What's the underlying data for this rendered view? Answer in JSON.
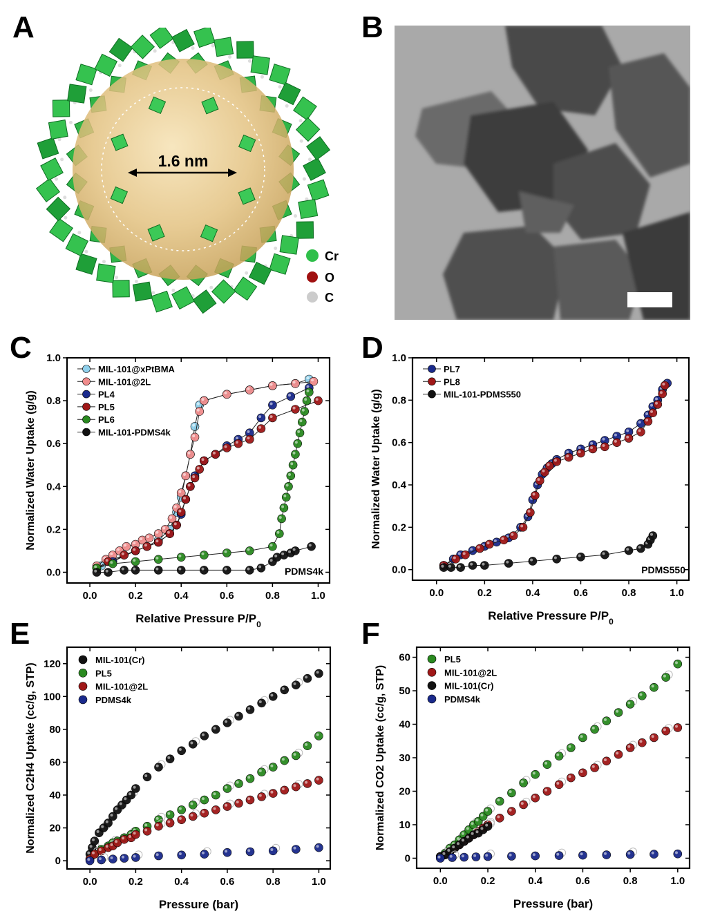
{
  "panels": {
    "A": "A",
    "B": "B",
    "C": "C",
    "D": "D",
    "E": "E",
    "F": "F"
  },
  "panelA": {
    "pore_label": "1.6 nm",
    "legend": [
      {
        "symbol": "Cr",
        "color": "#2fbf4a"
      },
      {
        "symbol": "O",
        "color": "#a01010"
      },
      {
        "symbol": "C",
        "color": "#cccccc"
      }
    ]
  },
  "panelB": {
    "description_free": true
  },
  "chart_data": [
    {
      "id": "C",
      "type": "scatter",
      "xlabel": "Relative Pressure P/P",
      "xlabel_sub": "0",
      "ylabel": "Normalized Water Uptake (g/g)",
      "annotation": "PDMS4k",
      "xlim": [
        -0.1,
        1.05
      ],
      "ylim": [
        -0.05,
        1.0
      ],
      "xticks": [
        "0.0",
        "0.2",
        "0.4",
        "0.6",
        "0.8",
        "1.0"
      ],
      "yticks": [
        "0.0",
        "0.2",
        "0.4",
        "0.6",
        "0.8",
        "1.0"
      ],
      "series": [
        {
          "name": "MIL-101@xPtBMA",
          "color": "#8fd0ec",
          "x": [
            0.05,
            0.1,
            0.15,
            0.2,
            0.25,
            0.3,
            0.35,
            0.38,
            0.4,
            0.42,
            0.44,
            0.46,
            0.48,
            0.5,
            0.6,
            0.7,
            0.8,
            0.9,
            0.96
          ],
          "y": [
            0.03,
            0.05,
            0.08,
            0.1,
            0.12,
            0.15,
            0.2,
            0.28,
            0.35,
            0.45,
            0.55,
            0.68,
            0.78,
            0.8,
            0.83,
            0.85,
            0.87,
            0.88,
            0.9
          ]
        },
        {
          "name": "MIL-101@2L",
          "color": "#f08c8c",
          "x": [
            0.03,
            0.07,
            0.1,
            0.13,
            0.16,
            0.2,
            0.23,
            0.26,
            0.3,
            0.33,
            0.36,
            0.38,
            0.4,
            0.42,
            0.44,
            0.46,
            0.48,
            0.5,
            0.6,
            0.7,
            0.8,
            0.9,
            0.98
          ],
          "y": [
            0.03,
            0.06,
            0.08,
            0.1,
            0.12,
            0.13,
            0.15,
            0.16,
            0.18,
            0.2,
            0.25,
            0.3,
            0.37,
            0.45,
            0.55,
            0.63,
            0.75,
            0.8,
            0.83,
            0.85,
            0.87,
            0.88,
            0.89
          ]
        },
        {
          "name": "PL4",
          "color": "#1a2a8c",
          "x": [
            0.03,
            0.1,
            0.2,
            0.3,
            0.35,
            0.38,
            0.4,
            0.42,
            0.44,
            0.46,
            0.5,
            0.55,
            0.6,
            0.65,
            0.7,
            0.75,
            0.8,
            0.88,
            0.96
          ],
          "y": [
            0.02,
            0.05,
            0.1,
            0.14,
            0.18,
            0.22,
            0.27,
            0.34,
            0.4,
            0.45,
            0.52,
            0.55,
            0.59,
            0.62,
            0.65,
            0.72,
            0.78,
            0.82,
            0.86
          ]
        },
        {
          "name": "PL5",
          "color": "#a01818",
          "x": [
            0.03,
            0.08,
            0.15,
            0.2,
            0.25,
            0.3,
            0.35,
            0.38,
            0.4,
            0.42,
            0.44,
            0.46,
            0.48,
            0.5,
            0.55,
            0.6,
            0.65,
            0.7,
            0.75,
            0.8,
            0.9,
            1.0
          ],
          "y": [
            0.02,
            0.05,
            0.08,
            0.1,
            0.12,
            0.14,
            0.18,
            0.22,
            0.28,
            0.34,
            0.4,
            0.44,
            0.48,
            0.52,
            0.55,
            0.58,
            0.6,
            0.62,
            0.67,
            0.72,
            0.76,
            0.8
          ]
        },
        {
          "name": "PL6",
          "color": "#2a8a20",
          "x": [
            0.03,
            0.1,
            0.2,
            0.3,
            0.4,
            0.5,
            0.6,
            0.7,
            0.8,
            0.83,
            0.84,
            0.85,
            0.86,
            0.87,
            0.88,
            0.89,
            0.9,
            0.91,
            0.92,
            0.93,
            0.94,
            0.95,
            0.96
          ],
          "y": [
            0.02,
            0.04,
            0.05,
            0.06,
            0.07,
            0.08,
            0.09,
            0.1,
            0.12,
            0.18,
            0.25,
            0.3,
            0.35,
            0.4,
            0.45,
            0.5,
            0.55,
            0.6,
            0.65,
            0.7,
            0.75,
            0.8,
            0.84
          ]
        },
        {
          "name": "MIL-101-PDMS4k",
          "color": "#111111",
          "x": [
            0.03,
            0.08,
            0.15,
            0.2,
            0.3,
            0.4,
            0.5,
            0.6,
            0.7,
            0.75,
            0.8,
            0.82,
            0.85,
            0.88,
            0.9,
            0.97
          ],
          "y": [
            0.0,
            0.0,
            0.01,
            0.01,
            0.01,
            0.01,
            0.01,
            0.01,
            0.01,
            0.02,
            0.05,
            0.07,
            0.08,
            0.09,
            0.1,
            0.12
          ]
        }
      ]
    },
    {
      "id": "D",
      "type": "scatter",
      "xlabel": "Relative Pressure P/P",
      "xlabel_sub": "0",
      "ylabel": "Normalized Water Uptake (g/g)",
      "annotation": "PDMS550",
      "xlim": [
        -0.1,
        1.05
      ],
      "ylim": [
        -0.05,
        1.0
      ],
      "xticks": [
        "0.0",
        "0.2",
        "0.4",
        "0.6",
        "0.8",
        "1.0"
      ],
      "yticks": [
        "0.0",
        "0.2",
        "0.4",
        "0.6",
        "0.8",
        "1.0"
      ],
      "series": [
        {
          "name": "PL7",
          "color": "#1a2a8c",
          "x": [
            0.03,
            0.07,
            0.1,
            0.15,
            0.2,
            0.25,
            0.3,
            0.35,
            0.38,
            0.4,
            0.42,
            0.44,
            0.46,
            0.48,
            0.5,
            0.55,
            0.6,
            0.65,
            0.7,
            0.75,
            0.8,
            0.85,
            0.88,
            0.9,
            0.92,
            0.94,
            0.96
          ],
          "y": [
            0.02,
            0.05,
            0.07,
            0.09,
            0.11,
            0.13,
            0.15,
            0.2,
            0.25,
            0.33,
            0.4,
            0.45,
            0.48,
            0.5,
            0.52,
            0.55,
            0.57,
            0.59,
            0.61,
            0.63,
            0.65,
            0.69,
            0.73,
            0.77,
            0.8,
            0.85,
            0.88
          ]
        },
        {
          "name": "PL8",
          "color": "#a01818",
          "x": [
            0.03,
            0.08,
            0.12,
            0.18,
            0.22,
            0.28,
            0.32,
            0.36,
            0.39,
            0.41,
            0.43,
            0.45,
            0.47,
            0.5,
            0.55,
            0.6,
            0.65,
            0.7,
            0.75,
            0.8,
            0.85,
            0.88,
            0.9,
            0.92,
            0.94,
            0.95
          ],
          "y": [
            0.02,
            0.05,
            0.07,
            0.1,
            0.12,
            0.14,
            0.16,
            0.2,
            0.27,
            0.35,
            0.42,
            0.46,
            0.49,
            0.51,
            0.53,
            0.55,
            0.57,
            0.58,
            0.6,
            0.62,
            0.65,
            0.7,
            0.74,
            0.78,
            0.83,
            0.87
          ]
        },
        {
          "name": "MIL-101-PDMS550",
          "color": "#111111",
          "x": [
            0.03,
            0.06,
            0.1,
            0.15,
            0.2,
            0.3,
            0.4,
            0.5,
            0.6,
            0.7,
            0.8,
            0.85,
            0.88,
            0.89,
            0.9
          ],
          "y": [
            0.01,
            0.01,
            0.01,
            0.02,
            0.02,
            0.03,
            0.04,
            0.05,
            0.06,
            0.07,
            0.09,
            0.1,
            0.12,
            0.14,
            0.16
          ]
        }
      ]
    },
    {
      "id": "E",
      "type": "scatter",
      "xlabel": "Pressure (bar)",
      "ylabel": "Normalized C2H4 Uptake (cc/g, STP)",
      "xlim": [
        -0.1,
        1.05
      ],
      "ylim": [
        -5,
        130
      ],
      "xticks": [
        "0.0",
        "0.2",
        "0.4",
        "0.6",
        "0.8",
        "1.0"
      ],
      "yticks": [
        "0",
        "20",
        "40",
        "60",
        "80",
        "100",
        "120"
      ],
      "series": [
        {
          "name": "MIL-101(Cr)",
          "color": "#111111",
          "x": [
            0.0,
            0.01,
            0.02,
            0.04,
            0.06,
            0.08,
            0.1,
            0.12,
            0.14,
            0.16,
            0.18,
            0.2,
            0.25,
            0.3,
            0.35,
            0.4,
            0.45,
            0.5,
            0.55,
            0.6,
            0.65,
            0.7,
            0.75,
            0.8,
            0.85,
            0.9,
            0.95,
            1.0
          ],
          "y": [
            4,
            8,
            12,
            17,
            20,
            23,
            27,
            31,
            34,
            37,
            40,
            44,
            51,
            57,
            62,
            67,
            71,
            76,
            80,
            84,
            88,
            92,
            96,
            100,
            104,
            107,
            111,
            114
          ]
        },
        {
          "name": "PL5",
          "color": "#2a8a20",
          "x": [
            0.0,
            0.02,
            0.05,
            0.08,
            0.1,
            0.12,
            0.15,
            0.18,
            0.2,
            0.25,
            0.3,
            0.35,
            0.4,
            0.45,
            0.5,
            0.55,
            0.6,
            0.65,
            0.7,
            0.75,
            0.8,
            0.85,
            0.9,
            0.95,
            1.0
          ],
          "y": [
            1,
            4,
            7,
            9,
            11,
            12,
            14,
            16,
            18,
            21,
            25,
            28,
            31,
            34,
            37,
            40,
            44,
            47,
            50,
            54,
            57,
            61,
            64,
            70,
            76
          ]
        },
        {
          "name": "MIL-101@2L",
          "color": "#a01818",
          "x": [
            0.0,
            0.02,
            0.05,
            0.08,
            0.1,
            0.12,
            0.15,
            0.18,
            0.2,
            0.25,
            0.3,
            0.35,
            0.4,
            0.45,
            0.5,
            0.55,
            0.6,
            0.65,
            0.7,
            0.75,
            0.8,
            0.85,
            0.9,
            0.95,
            1.0
          ],
          "y": [
            1,
            4,
            6,
            8,
            9,
            11,
            13,
            14,
            16,
            18,
            21,
            23,
            25,
            27,
            29,
            31,
            33,
            35,
            37,
            39,
            41,
            43,
            45,
            47,
            49
          ]
        },
        {
          "name": "PDMS4k",
          "color": "#1a2a8c",
          "x": [
            0.0,
            0.05,
            0.1,
            0.15,
            0.2,
            0.3,
            0.4,
            0.5,
            0.6,
            0.7,
            0.8,
            0.9,
            1.0
          ],
          "y": [
            0,
            0.5,
            1,
            1.5,
            2,
            3,
            3.5,
            4,
            5,
            5.5,
            6,
            7,
            8
          ]
        }
      ]
    },
    {
      "id": "F",
      "type": "scatter",
      "xlabel": "Pressure (bar)",
      "ylabel": "Normalized CO2 Uptake (cc/g, STP)",
      "xlim": [
        -0.1,
        1.05
      ],
      "ylim": [
        -3,
        63
      ],
      "xticks": [
        "0.0",
        "0.2",
        "0.4",
        "0.6",
        "0.8",
        "1.0"
      ],
      "yticks": [
        "0",
        "10",
        "20",
        "30",
        "40",
        "50",
        "60"
      ],
      "series": [
        {
          "name": "PL5",
          "color": "#2a8a20",
          "x": [
            0.0,
            0.02,
            0.04,
            0.06,
            0.08,
            0.1,
            0.12,
            0.14,
            0.16,
            0.18,
            0.2,
            0.25,
            0.3,
            0.35,
            0.4,
            0.45,
            0.5,
            0.55,
            0.6,
            0.65,
            0.7,
            0.75,
            0.8,
            0.85,
            0.9,
            0.95,
            1.0
          ],
          "y": [
            0.5,
            1.5,
            3,
            4,
            5.5,
            7,
            8.5,
            10,
            11,
            12.5,
            14,
            17,
            19.5,
            22.5,
            25,
            28,
            30.5,
            33,
            36,
            38.5,
            41,
            43.5,
            46,
            48.5,
            51,
            54,
            58
          ]
        },
        {
          "name": "MIL-101@2L",
          "color": "#a01818",
          "x": [
            0.0,
            0.02,
            0.04,
            0.06,
            0.08,
            0.1,
            0.12,
            0.14,
            0.16,
            0.18,
            0.2,
            0.25,
            0.3,
            0.35,
            0.4,
            0.45,
            0.5,
            0.55,
            0.6,
            0.65,
            0.7,
            0.75,
            0.8,
            0.85,
            0.9,
            0.95,
            1.0
          ],
          "y": [
            0.5,
            1,
            2,
            3,
            4,
            5,
            6,
            7,
            8,
            9,
            10,
            12,
            14,
            16,
            18,
            20,
            22,
            24,
            25.5,
            27,
            29,
            31,
            33,
            34.5,
            36,
            38,
            39
          ]
        },
        {
          "name": "MIL-101(Cr)",
          "color": "#111111",
          "x": [
            0.0,
            0.02,
            0.04,
            0.06,
            0.08,
            0.1,
            0.12,
            0.14,
            0.16,
            0.18,
            0.2
          ],
          "y": [
            0.5,
            1,
            2,
            3,
            4,
            5,
            6,
            7,
            7.5,
            8.5,
            9.5
          ]
        },
        {
          "name": "PDMS4k",
          "color": "#1a2a8c",
          "x": [
            0.0,
            0.05,
            0.1,
            0.15,
            0.2,
            0.3,
            0.4,
            0.5,
            0.6,
            0.7,
            0.8,
            0.9,
            1.0
          ],
          "y": [
            0,
            0.2,
            0.3,
            0.4,
            0.5,
            0.6,
            0.7,
            0.8,
            0.9,
            1,
            1.1,
            1.2,
            1.3
          ]
        }
      ]
    }
  ]
}
